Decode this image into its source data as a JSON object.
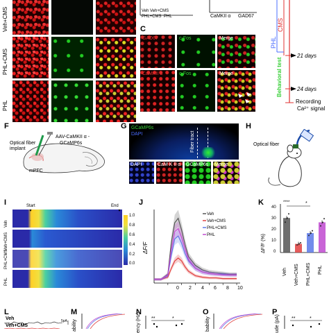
{
  "panel_letters": {
    "c": "C",
    "f": "F",
    "g": "G",
    "h": "H",
    "i": "I",
    "j": "J",
    "k": "K",
    "l": "L",
    "m": "M",
    "n": "N",
    "o": "O",
    "p": "P"
  },
  "row_labels": {
    "veh_cms": "Veh+CMS",
    "phl_cms": "PHL+CMS",
    "phl": "PHL"
  },
  "top_bar": {
    "legend": [
      "Veh",
      "Veh+CMS",
      "PHL+CMS",
      "PHL"
    ],
    "x_labels": [
      "CaMKII α",
      "GAD67"
    ]
  },
  "panel_c": {
    "row1": [
      "GAD67",
      "c-Fos",
      "Merge"
    ],
    "row2": [
      "CaMKII α",
      "c-Fos",
      "Merge"
    ]
  },
  "timeline": {
    "groups": [
      "PHL",
      "CMS"
    ],
    "day21": "21 days",
    "behavioral": "Behavioral test",
    "day24": "24 days",
    "recording": "Recording",
    "signal": "Ca²⁺ signal"
  },
  "panel_f": {
    "fiber": "Optical fiber",
    "implant": "implant",
    "virus1": "AAV-CaMKII α -",
    "virus2": "GCaMP6s",
    "region": "mPFC"
  },
  "panel_g": {
    "gcamp": "GCaMP6s",
    "dapi": "DAPI",
    "fiber_tract": "Fiber tract",
    "insets": [
      "DAPI",
      "CaM K II α",
      "GCaMP6s",
      "Merge"
    ]
  },
  "panel_h": {
    "fiber": "Optical fiber"
  },
  "panel_i": {
    "start": "Start",
    "end": "End",
    "rows": [
      "Veh",
      "Veh+CMS",
      "PHL+CMS",
      "PHL"
    ],
    "colorbar_ticks": [
      "1.0",
      "0.8",
      "0.6",
      "0.4",
      "0.2",
      "0.0"
    ]
  },
  "panel_j": {
    "ylabel": "ΔF/F",
    "x_ticks": [
      "0",
      "2",
      "4",
      "6",
      "8",
      "10"
    ],
    "legend": [
      "Veh",
      "Veh+CMS",
      "PHL+CMS",
      "PHL"
    ]
  },
  "panel_k": {
    "ylabel": "ΔF/F (%)",
    "y_ticks": [
      "0",
      "10",
      "20",
      "30",
      "40"
    ],
    "sig": [
      "****",
      "*"
    ],
    "groups": [
      "Veh",
      "Veh+CMS",
      "PHL+CMS",
      "PHL"
    ]
  },
  "panel_l": {
    "traces": [
      "Veh",
      "Veh+CMS"
    ],
    "scale": "5pA"
  },
  "panel_n": {
    "ylabel": "ency (Hz)",
    "sig": [
      "**",
      "*"
    ]
  },
  "panel_o": {
    "ylabel": "bability"
  },
  "panel_m": {
    "ylabel": "ability"
  },
  "panel_p": {
    "ylabel": "ude (pA)",
    "sig": [
      "**",
      "*"
    ]
  },
  "colors": {
    "veh": "#555555",
    "veh_cms": "#e04040",
    "phl_cms": "#5a78e8",
    "phl": "#c04ad0"
  },
  "chart_data": [
    {
      "type": "line",
      "id": "J",
      "ylabel": "ΔF/F",
      "x": [
        -2,
        -1,
        0,
        0.5,
        1,
        1.5,
        2,
        2.5,
        3,
        4,
        5,
        6,
        7,
        8,
        9,
        10
      ],
      "xlim": [
        -2,
        10.5
      ],
      "ylim": [
        0,
        1
      ],
      "series": [
        {
          "name": "Veh",
          "values": [
            0.05,
            0.05,
            0.12,
            0.55,
            0.82,
            0.88,
            0.72,
            0.52,
            0.36,
            0.24,
            0.18,
            0.15,
            0.14,
            0.13,
            0.12,
            0.12
          ]
        },
        {
          "name": "Veh+CMS",
          "values": [
            0.05,
            0.05,
            0.08,
            0.2,
            0.3,
            0.34,
            0.3,
            0.22,
            0.16,
            0.1,
            0.08,
            0.07,
            0.07,
            0.06,
            0.06,
            0.06
          ]
        },
        {
          "name": "PHL+CMS",
          "values": [
            0.05,
            0.05,
            0.1,
            0.38,
            0.6,
            0.64,
            0.54,
            0.4,
            0.3,
            0.2,
            0.15,
            0.13,
            0.12,
            0.12,
            0.11,
            0.11
          ]
        },
        {
          "name": "PHL",
          "values": [
            0.05,
            0.05,
            0.11,
            0.45,
            0.7,
            0.74,
            0.62,
            0.46,
            0.32,
            0.2,
            0.15,
            0.13,
            0.12,
            0.11,
            0.11,
            0.11
          ]
        }
      ]
    },
    {
      "type": "bar",
      "id": "K",
      "ylabel": "ΔF/F (%)",
      "categories": [
        "Veh",
        "Veh+CMS",
        "PHL+CMS",
        "PHL"
      ],
      "values": [
        32,
        8,
        18,
        28
      ],
      "ylim": [
        0,
        45
      ]
    }
  ]
}
